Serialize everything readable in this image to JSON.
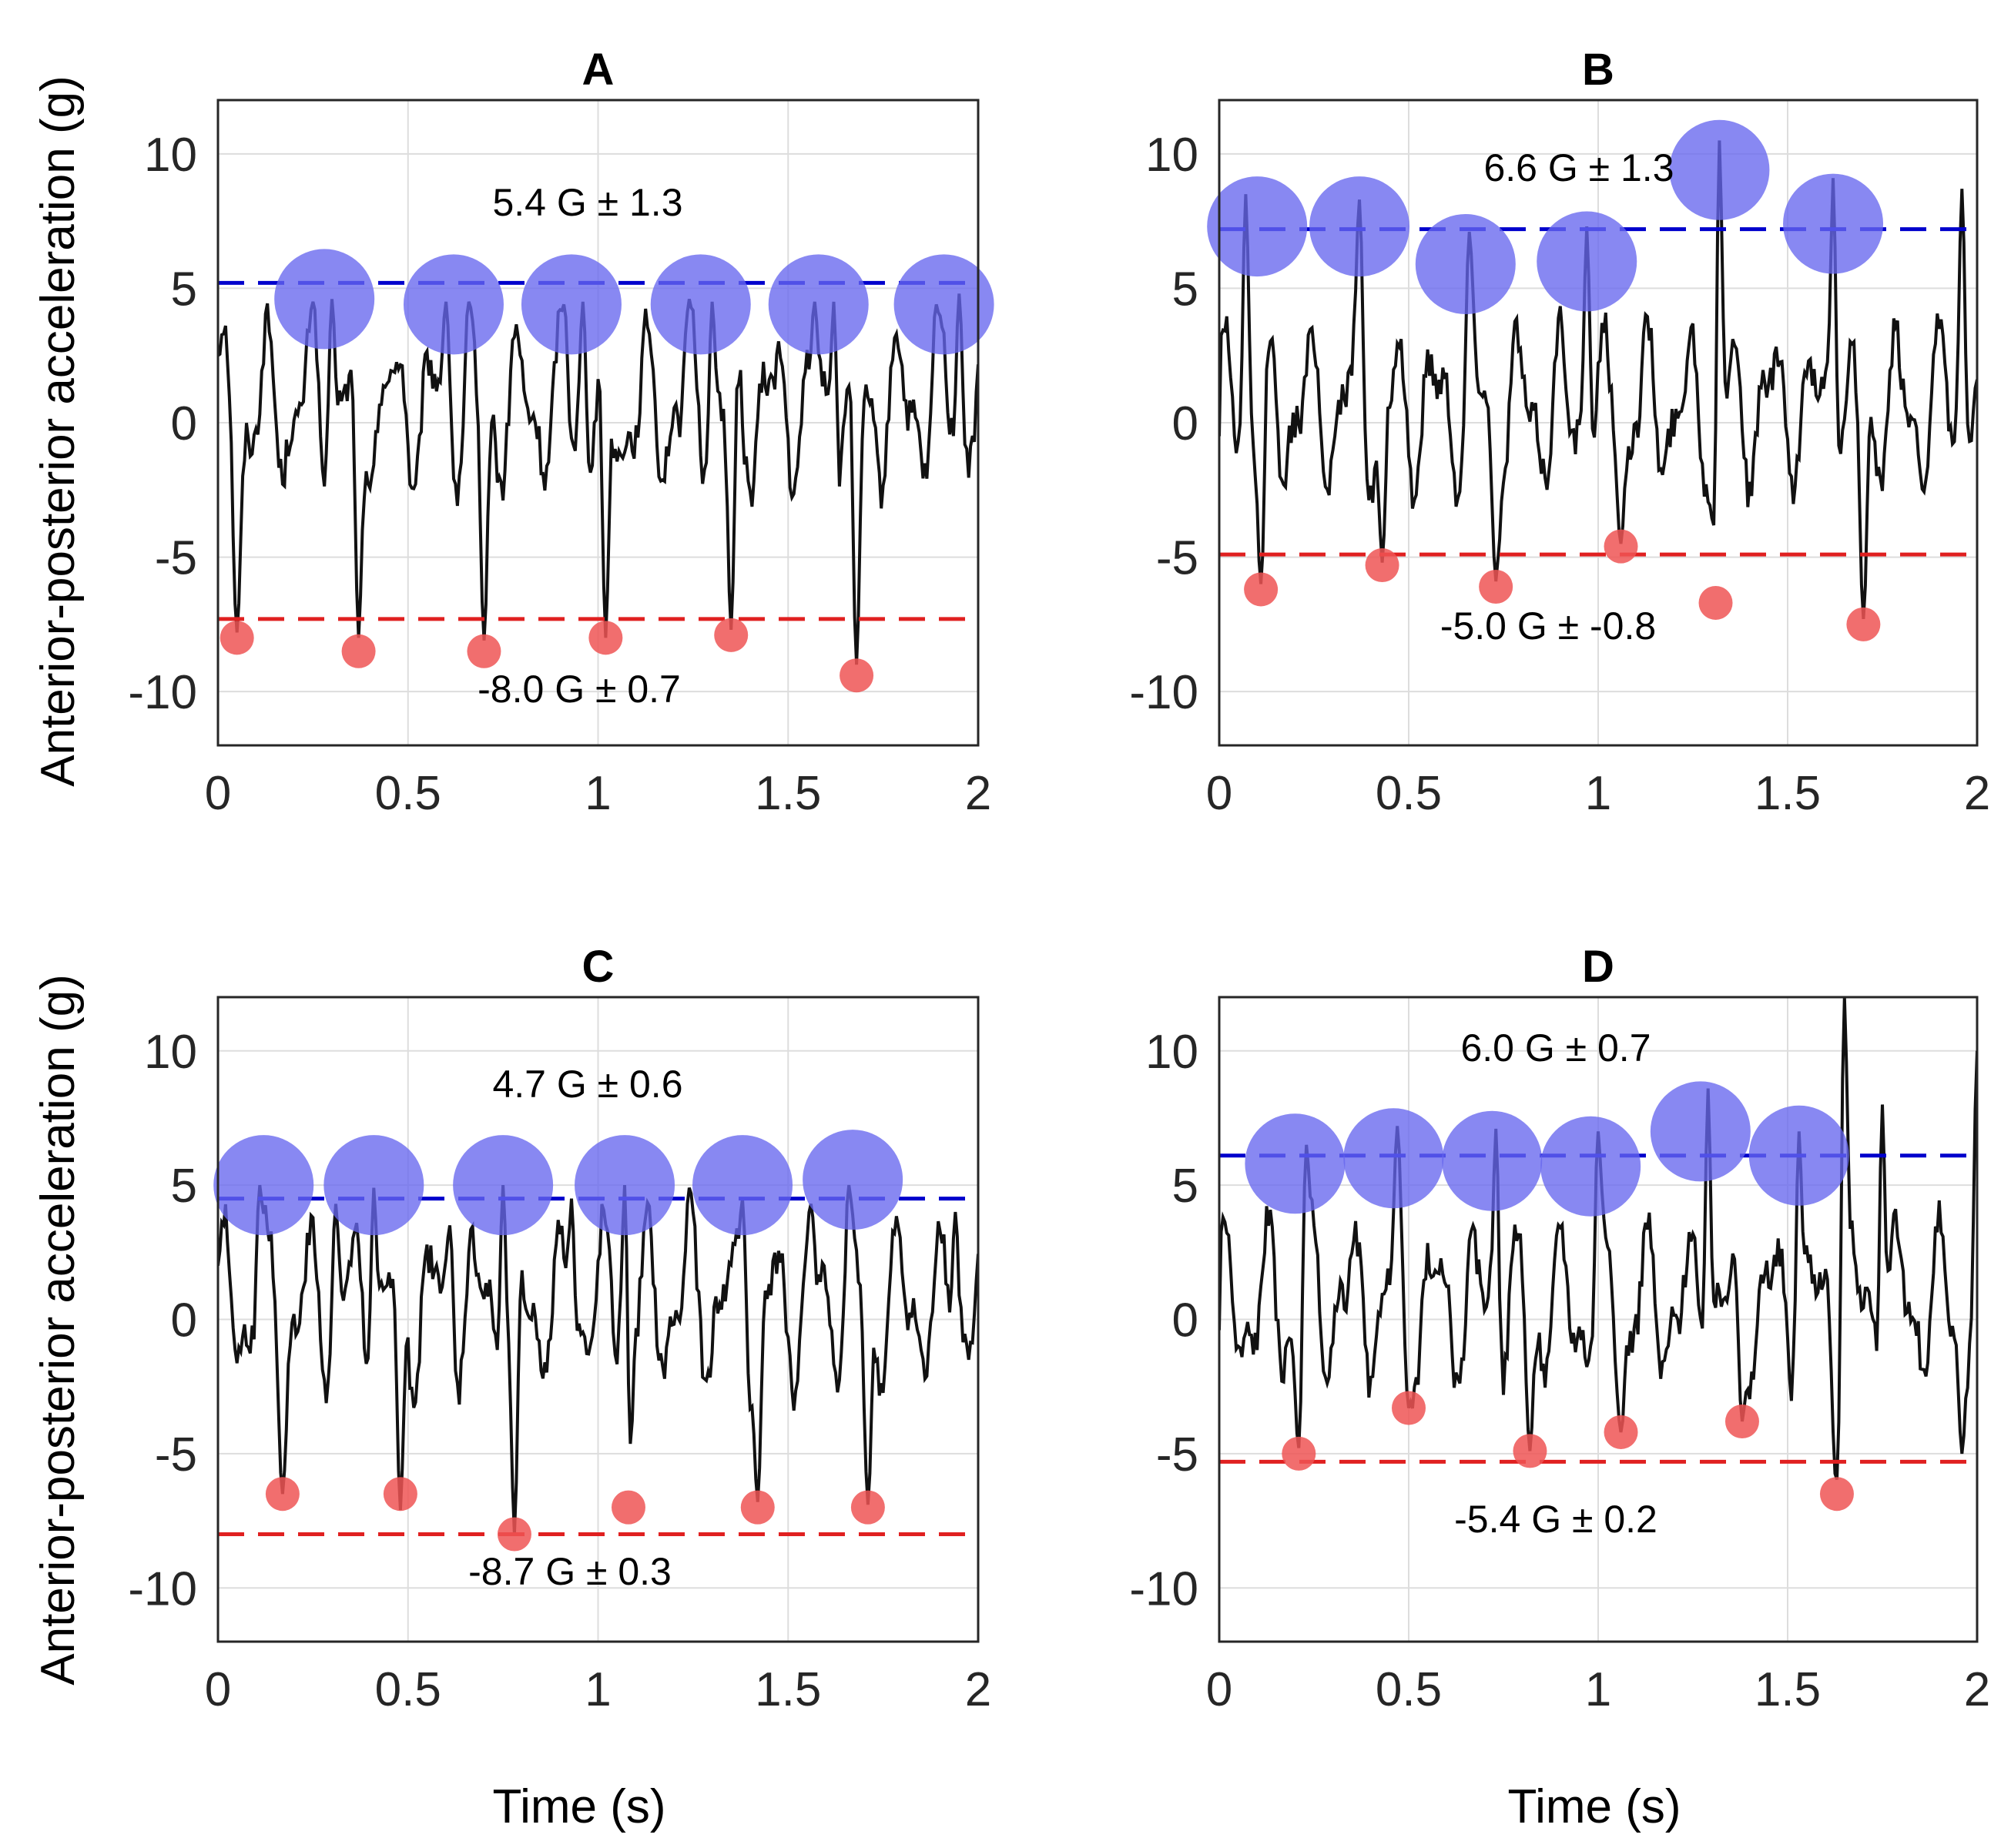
{
  "figure": {
    "ylabel_top": "Anterior-posterior acceleration (g)",
    "ylabel_bottom": "Anterior-posterior acceleration (g)",
    "xlabel_left": "Time (s)",
    "xlabel_right": "Time (s)"
  },
  "colors": {
    "signal": "#111111",
    "upper_line": "#0000cc",
    "lower_line": "#e02020",
    "upper_marker": "#6666ee",
    "lower_marker": "#ee5555",
    "grid": "#dddddd"
  },
  "chart_data": [
    {
      "type": "line",
      "title": "A",
      "xlabel": "",
      "ylabel": "Anterior-posterior acceleration (g)",
      "xlim": [
        0,
        2
      ],
      "ylim": [
        -12,
        12
      ],
      "xticks": [
        0,
        0.5,
        1,
        1.5,
        2
      ],
      "xtick_labels": [
        "0",
        "0.5",
        "1",
        "1.5",
        "2"
      ],
      "yticks": [
        10,
        5,
        0,
        -5,
        -10
      ],
      "ytick_labels": [
        "10",
        "5",
        "0",
        "-5",
        "-10"
      ],
      "grid": true,
      "upper_mean": 5.2,
      "lower_mean": -7.3,
      "upper_label": "5.4 G ± 1.3",
      "lower_label": "-8.0 G ± 0.7",
      "upper_peaks": [
        [
          0.28,
          4.6
        ],
        [
          0.62,
          4.4
        ],
        [
          0.93,
          4.4
        ],
        [
          1.27,
          4.4
        ],
        [
          1.58,
          4.4
        ],
        [
          1.91,
          4.4
        ]
      ],
      "lower_peaks": [
        [
          0.05,
          -8.0
        ],
        [
          0.37,
          -8.5
        ],
        [
          0.7,
          -8.5
        ],
        [
          1.02,
          -8.0
        ],
        [
          1.35,
          -7.9
        ],
        [
          1.68,
          -9.4
        ]
      ],
      "trace_profile": {
        "start": 2.5,
        "min_x": [
          0.05,
          0.37,
          0.7,
          1.02,
          1.35,
          1.68
        ],
        "min_y": [
          -7.8,
          -8.0,
          -8.1,
          -8.0,
          -7.7,
          -9.0
        ],
        "max_x": [
          0.25,
          0.3,
          0.6,
          0.66,
          0.91,
          0.96,
          1.24,
          1.3,
          1.57,
          1.62,
          1.89,
          1.95
        ],
        "max_y": [
          4.5,
          4.6,
          4.5,
          4.5,
          4.4,
          4.5,
          4.6,
          4.5,
          4.5,
          4.5,
          4.4,
          4.8
        ]
      }
    },
    {
      "type": "line",
      "title": "B",
      "xlabel": "",
      "ylabel": "",
      "xlim": [
        0,
        2
      ],
      "ylim": [
        -12,
        12
      ],
      "xticks": [
        0,
        0.5,
        1,
        1.5,
        2
      ],
      "xtick_labels": [
        "0",
        "0.5",
        "1",
        "1.5",
        "2"
      ],
      "yticks": [
        10,
        5,
        0,
        -5,
        -10
      ],
      "ytick_labels": [
        "10",
        "5",
        "0",
        "-5",
        "-10"
      ],
      "grid": true,
      "upper_mean": 7.2,
      "lower_mean": -4.9,
      "upper_label": "6.6 G ± 1.3",
      "lower_label": "-5.0 G ± -0.8",
      "upper_peaks": [
        [
          0.1,
          7.3
        ],
        [
          0.37,
          7.3
        ],
        [
          0.65,
          5.9
        ],
        [
          0.97,
          6.0
        ],
        [
          1.32,
          9.4
        ],
        [
          1.62,
          7.4
        ]
      ],
      "lower_peaks": [
        [
          0.11,
          -6.2
        ],
        [
          0.43,
          -5.3
        ],
        [
          0.73,
          -6.1
        ],
        [
          1.06,
          -4.6
        ],
        [
          1.31,
          -6.7
        ],
        [
          1.7,
          -7.5
        ]
      ],
      "trace_profile": {
        "start": -0.5,
        "min_x": [
          0.11,
          0.43,
          0.73,
          1.06,
          1.31,
          1.7
        ],
        "min_y": [
          -6.0,
          -5.2,
          -5.9,
          -4.5,
          -6.5,
          -7.3
        ],
        "max_x": [
          0.07,
          0.37,
          0.66,
          0.97,
          1.32,
          1.62,
          1.96
        ],
        "max_y": [
          8.5,
          8.3,
          7.1,
          7.3,
          10.5,
          9.1,
          8.7
        ]
      }
    },
    {
      "type": "line",
      "title": "C",
      "xlabel": "Time (s)",
      "ylabel": "Anterior-posterior acceleration (g)",
      "xlim": [
        0,
        2
      ],
      "ylim": [
        -12,
        12
      ],
      "xticks": [
        0,
        0.5,
        1,
        1.5,
        2
      ],
      "xtick_labels": [
        "0",
        "0.5",
        "1",
        "1.5",
        "2"
      ],
      "yticks": [
        10,
        5,
        0,
        -5,
        -10
      ],
      "ytick_labels": [
        "10",
        "5",
        "0",
        "-5",
        "-10"
      ],
      "grid": true,
      "upper_mean": 4.5,
      "lower_mean": -8.0,
      "upper_label": "4.7 G ± 0.6",
      "lower_label": "-8.7 G ± 0.3",
      "upper_peaks": [
        [
          0.12,
          5.0
        ],
        [
          0.41,
          5.0
        ],
        [
          0.75,
          5.0
        ],
        [
          1.07,
          5.0
        ],
        [
          1.38,
          5.0
        ],
        [
          1.67,
          5.2
        ]
      ],
      "lower_peaks": [
        [
          0.17,
          -6.5
        ],
        [
          0.48,
          -6.5
        ],
        [
          0.78,
          -8.0
        ],
        [
          1.08,
          -7.0
        ],
        [
          1.42,
          -7.0
        ],
        [
          1.71,
          -7.0
        ]
      ],
      "trace_profile": {
        "start": 2.0,
        "min_x": [
          0.17,
          0.48,
          0.78,
          1.08,
          1.42,
          1.71
        ],
        "min_y": [
          -6.5,
          -7.1,
          -8.0,
          -6.7,
          -6.8,
          -6.9
        ],
        "max_x": [
          0.11,
          0.31,
          0.41,
          0.61,
          0.75,
          0.93,
          1.07,
          1.24,
          1.38,
          1.56,
          1.66,
          1.94
        ],
        "max_y": [
          5.0,
          4.3,
          4.9,
          3.5,
          5.0,
          4.5,
          5.0,
          4.9,
          4.5,
          4.3,
          5.0,
          4.0
        ]
      }
    },
    {
      "type": "line",
      "title": "D",
      "xlabel": "Time (s)",
      "ylabel": "",
      "xlim": [
        0,
        2
      ],
      "ylim": [
        -12,
        12
      ],
      "xticks": [
        0,
        0.5,
        1,
        1.5,
        2
      ],
      "xtick_labels": [
        "0",
        "0.5",
        "1",
        "1.5",
        "2"
      ],
      "yticks": [
        10,
        5,
        0,
        -5,
        -10
      ],
      "ytick_labels": [
        "10",
        "5",
        "0",
        "-5",
        "-10"
      ],
      "grid": true,
      "upper_mean": 6.1,
      "lower_mean": -5.3,
      "upper_label": "6.0 G ± 0.7",
      "lower_label": "-5.4 G ± 0.2",
      "upper_peaks": [
        [
          0.2,
          5.8
        ],
        [
          0.46,
          6.0
        ],
        [
          0.72,
          5.9
        ],
        [
          0.98,
          5.7
        ],
        [
          1.27,
          7.0
        ],
        [
          1.53,
          6.1
        ]
      ],
      "lower_peaks": [
        [
          0.21,
          -5.0
        ],
        [
          0.5,
          -3.3
        ],
        [
          0.82,
          -4.9
        ],
        [
          1.06,
          -4.2
        ],
        [
          1.38,
          -3.8
        ],
        [
          1.63,
          -6.5
        ]
      ],
      "trace_profile": {
        "start": -0.4,
        "min_x": [
          0.21,
          0.5,
          0.82,
          1.06,
          1.38,
          1.63,
          1.96
        ],
        "min_y": [
          -5.0,
          -3.3,
          -4.9,
          -4.2,
          -3.8,
          -6.3,
          -5.0
        ],
        "max_x": [
          0.23,
          0.47,
          0.73,
          1.0,
          1.29,
          1.53,
          1.65,
          1.75,
          2.0
        ],
        "max_y": [
          6.5,
          7.2,
          7.1,
          7.0,
          8.6,
          7.0,
          12.0,
          8.0,
          10.0
        ]
      }
    }
  ]
}
